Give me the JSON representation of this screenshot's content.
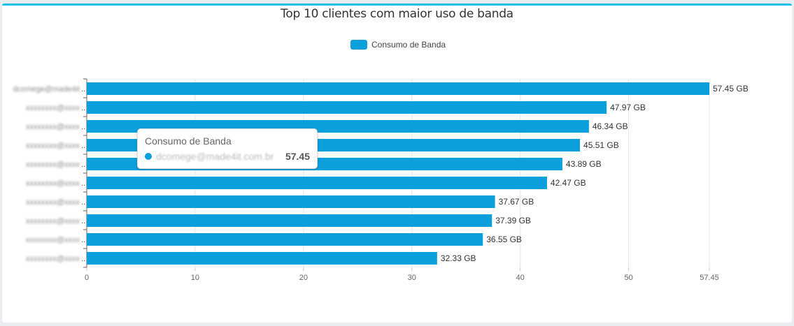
{
  "chart_data": {
    "type": "bar",
    "orientation": "horizontal",
    "title": "Top 10 clientes com maior uso de banda",
    "categories": [
      "dcomege@made4it.com.br",
      "",
      "",
      "",
      "",
      "",
      "",
      "",
      "",
      ""
    ],
    "series": [
      {
        "name": "Consumo de Banda",
        "values": [
          57.45,
          47.97,
          46.34,
          45.51,
          43.89,
          42.47,
          37.67,
          37.39,
          36.55,
          32.33
        ]
      }
    ],
    "data_labels": [
      "57.45 GB",
      "47.97 GB",
      "46.34 GB",
      "45.51 GB",
      "43.89 GB",
      "42.47 GB",
      "37.67 GB",
      "37.39 GB",
      "36.55 GB",
      "32.33 GB"
    ],
    "x_ticks": [
      "0",
      "10",
      "20",
      "30",
      "40",
      "50",
      "57.45"
    ],
    "xlim": [
      0,
      57.45
    ],
    "grid": true,
    "legend_position": "top",
    "color": "#0ba0dc"
  },
  "tooltip": {
    "title": "Consumo de Banda",
    "label": "dcomege@made4it.com.br",
    "value": "57.45"
  },
  "accent_color": "#17c1e8"
}
